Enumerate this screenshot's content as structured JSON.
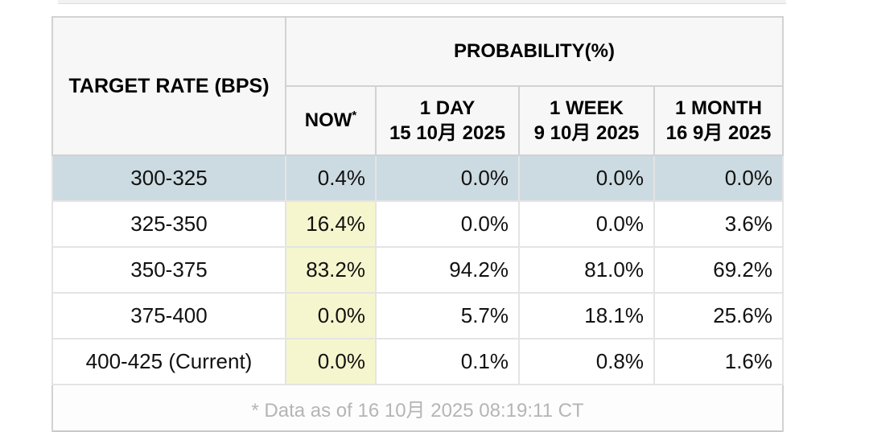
{
  "table": {
    "corner_header": "TARGET RATE (BPS)",
    "group_header": "PROBABILITY(%)",
    "columns": [
      {
        "line1": "NOW",
        "sup": "*",
        "line2": ""
      },
      {
        "line1": "1 DAY",
        "line2": "15 10月 2025"
      },
      {
        "line1": "1 WEEK",
        "line2": "9 10月 2025"
      },
      {
        "line1": "1 MONTH",
        "line2": "16 9月 2025"
      }
    ],
    "rows": [
      {
        "rate": "300-325",
        "now": "0.4%",
        "day": "0.0%",
        "week": "0.0%",
        "month": "0.0%"
      },
      {
        "rate": "325-350",
        "now": "16.4%",
        "day": "0.0%",
        "week": "0.0%",
        "month": "3.6%"
      },
      {
        "rate": "350-375",
        "now": "83.2%",
        "day": "94.2%",
        "week": "81.0%",
        "month": "69.2%"
      },
      {
        "rate": "375-400",
        "now": "0.0%",
        "day": "5.7%",
        "week": "18.1%",
        "month": "25.6%"
      },
      {
        "rate": "400-425 (Current)",
        "now": "0.0%",
        "day": "0.1%",
        "week": "0.8%",
        "month": "1.6%"
      }
    ],
    "footnote": "* Data as of 16 10月 2025 08:19:11 CT"
  },
  "colors": {
    "selected_row_bg": "#ccdbe1",
    "now_highlight_bg": "#f6f6ce",
    "header_bg": "#f7f7f7",
    "outer_border": "#c9c9c9",
    "footnote_text": "#b5b5b5"
  }
}
